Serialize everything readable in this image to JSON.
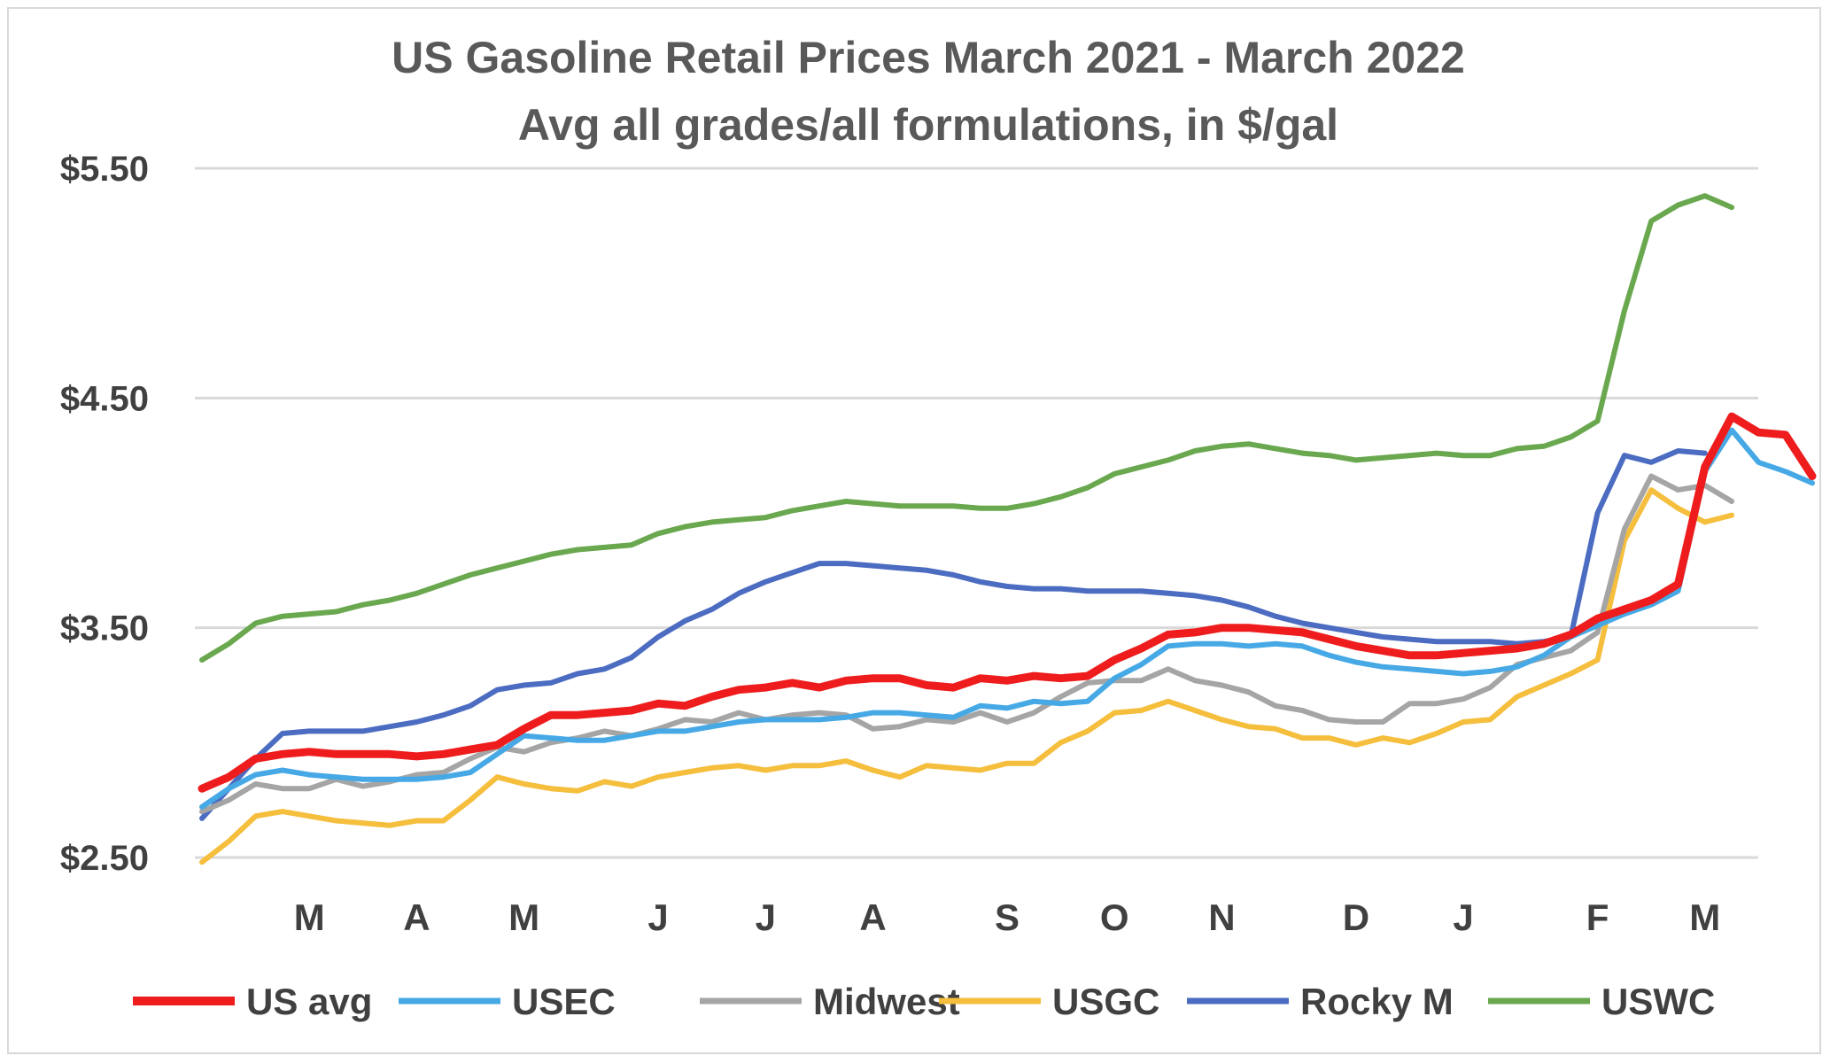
{
  "chart_data": {
    "type": "line",
    "title": "US Gasoline Retail Prices March 2021 - March 2022",
    "subtitle": "Avg all grades/all formulations, in $/gal",
    "xlabel": "",
    "ylabel": "",
    "ylim": [
      2.5,
      5.5
    ],
    "y_ticks": [
      2.5,
      3.5,
      4.5,
      5.5
    ],
    "y_tick_labels": [
      "$2.50",
      "$3.50",
      "$4.50",
      "$5.50"
    ],
    "x_ticks": [
      {
        "label": "M",
        "at": 4
      },
      {
        "label": "A",
        "at": 8
      },
      {
        "label": "M",
        "at": 12
      },
      {
        "label": "J",
        "at": 17
      },
      {
        "label": "J",
        "at": 21
      },
      {
        "label": "A",
        "at": 25
      },
      {
        "label": "S",
        "at": 30
      },
      {
        "label": "O",
        "at": 34
      },
      {
        "label": "N",
        "at": 38
      },
      {
        "label": "D",
        "at": 43
      },
      {
        "label": "J",
        "at": 47
      },
      {
        "label": "F",
        "at": 52
      },
      {
        "label": "M",
        "at": 56
      }
    ],
    "grid": true,
    "legend_position": "bottom",
    "series": [
      {
        "name": "US avg",
        "color": "#ee1c1c",
        "values": [
          2.8,
          2.85,
          2.93,
          2.95,
          2.96,
          2.95,
          2.95,
          2.95,
          2.94,
          2.95,
          2.97,
          2.99,
          3.06,
          3.12,
          3.12,
          3.13,
          3.14,
          3.17,
          3.16,
          3.2,
          3.23,
          3.24,
          3.26,
          3.24,
          3.27,
          3.28,
          3.28,
          3.25,
          3.24,
          3.28,
          3.27,
          3.29,
          3.28,
          3.29,
          3.36,
          3.41,
          3.47,
          3.48,
          3.5,
          3.5,
          3.49,
          3.48,
          3.45,
          3.42,
          3.4,
          3.38,
          3.38,
          3.39,
          3.4,
          3.41,
          3.43,
          3.47,
          3.54,
          3.58,
          3.62,
          3.69,
          4.2,
          4.42,
          4.35,
          4.34,
          4.16
        ]
      },
      {
        "name": "USEC",
        "color": "#46a9e6",
        "values": [
          2.72,
          2.8,
          2.86,
          2.88,
          2.86,
          2.85,
          2.84,
          2.84,
          2.84,
          2.85,
          2.87,
          2.95,
          3.03,
          3.02,
          3.01,
          3.01,
          3.03,
          3.05,
          3.05,
          3.07,
          3.09,
          3.1,
          3.1,
          3.1,
          3.11,
          3.13,
          3.13,
          3.12,
          3.11,
          3.16,
          3.15,
          3.18,
          3.17,
          3.18,
          3.28,
          3.34,
          3.42,
          3.43,
          3.43,
          3.42,
          3.43,
          3.42,
          3.38,
          3.35,
          3.33,
          3.32,
          3.31,
          3.3,
          3.31,
          3.33,
          3.38,
          3.46,
          3.51,
          3.56,
          3.6,
          3.66,
          4.18,
          4.36,
          4.22,
          4.18,
          4.13
        ]
      },
      {
        "name": "Midwest",
        "color": "#a5a5a5",
        "values": [
          2.7,
          2.75,
          2.82,
          2.8,
          2.8,
          2.84,
          2.81,
          2.83,
          2.86,
          2.87,
          2.93,
          2.98,
          2.96,
          3.0,
          3.02,
          3.05,
          3.03,
          3.06,
          3.1,
          3.09,
          3.13,
          3.1,
          3.12,
          3.13,
          3.12,
          3.06,
          3.07,
          3.1,
          3.09,
          3.13,
          3.09,
          3.13,
          3.2,
          3.26,
          3.27,
          3.27,
          3.32,
          3.27,
          3.25,
          3.22,
          3.16,
          3.14,
          3.1,
          3.09,
          3.09,
          3.17,
          3.17,
          3.19,
          3.24,
          3.34,
          3.37,
          3.4,
          3.48,
          3.93,
          4.16,
          4.1,
          4.12,
          4.05
        ]
      },
      {
        "name": "USGC",
        "color": "#f5be3c",
        "values": [
          2.48,
          2.57,
          2.68,
          2.7,
          2.68,
          2.66,
          2.65,
          2.64,
          2.66,
          2.66,
          2.75,
          2.85,
          2.82,
          2.8,
          2.79,
          2.83,
          2.81,
          2.85,
          2.87,
          2.89,
          2.9,
          2.88,
          2.9,
          2.9,
          2.92,
          2.88,
          2.85,
          2.9,
          2.89,
          2.88,
          2.91,
          2.91,
          3.0,
          3.05,
          3.13,
          3.14,
          3.18,
          3.14,
          3.1,
          3.07,
          3.06,
          3.02,
          3.02,
          2.99,
          3.02,
          3.0,
          3.04,
          3.09,
          3.1,
          3.2,
          3.25,
          3.3,
          3.36,
          3.88,
          4.1,
          4.02,
          3.96,
          3.99
        ]
      },
      {
        "name": "Rocky M",
        "color": "#4b6cc1",
        "values": [
          2.67,
          2.8,
          2.93,
          3.04,
          3.05,
          3.05,
          3.05,
          3.07,
          3.09,
          3.12,
          3.16,
          3.23,
          3.25,
          3.26,
          3.3,
          3.32,
          3.37,
          3.46,
          3.53,
          3.58,
          3.65,
          3.7,
          3.74,
          3.78,
          3.78,
          3.77,
          3.76,
          3.75,
          3.73,
          3.7,
          3.68,
          3.67,
          3.67,
          3.66,
          3.66,
          3.66,
          3.65,
          3.64,
          3.62,
          3.59,
          3.55,
          3.52,
          3.5,
          3.48,
          3.46,
          3.45,
          3.44,
          3.44,
          3.44,
          3.43,
          3.44,
          3.46,
          4.0,
          4.25,
          4.22,
          4.27,
          4.26
        ]
      },
      {
        "name": "USWC",
        "color": "#6aa84f",
        "values": [
          3.36,
          3.43,
          3.52,
          3.55,
          3.56,
          3.57,
          3.6,
          3.62,
          3.65,
          3.69,
          3.73,
          3.76,
          3.79,
          3.82,
          3.84,
          3.85,
          3.86,
          3.91,
          3.94,
          3.96,
          3.97,
          3.98,
          4.01,
          4.03,
          4.05,
          4.04,
          4.03,
          4.03,
          4.03,
          4.02,
          4.02,
          4.04,
          4.07,
          4.11,
          4.17,
          4.2,
          4.23,
          4.27,
          4.29,
          4.3,
          4.28,
          4.26,
          4.25,
          4.23,
          4.24,
          4.25,
          4.26,
          4.25,
          4.25,
          4.28,
          4.29,
          4.33,
          4.4,
          4.88,
          5.27,
          5.34,
          5.38,
          5.33
        ]
      }
    ]
  }
}
